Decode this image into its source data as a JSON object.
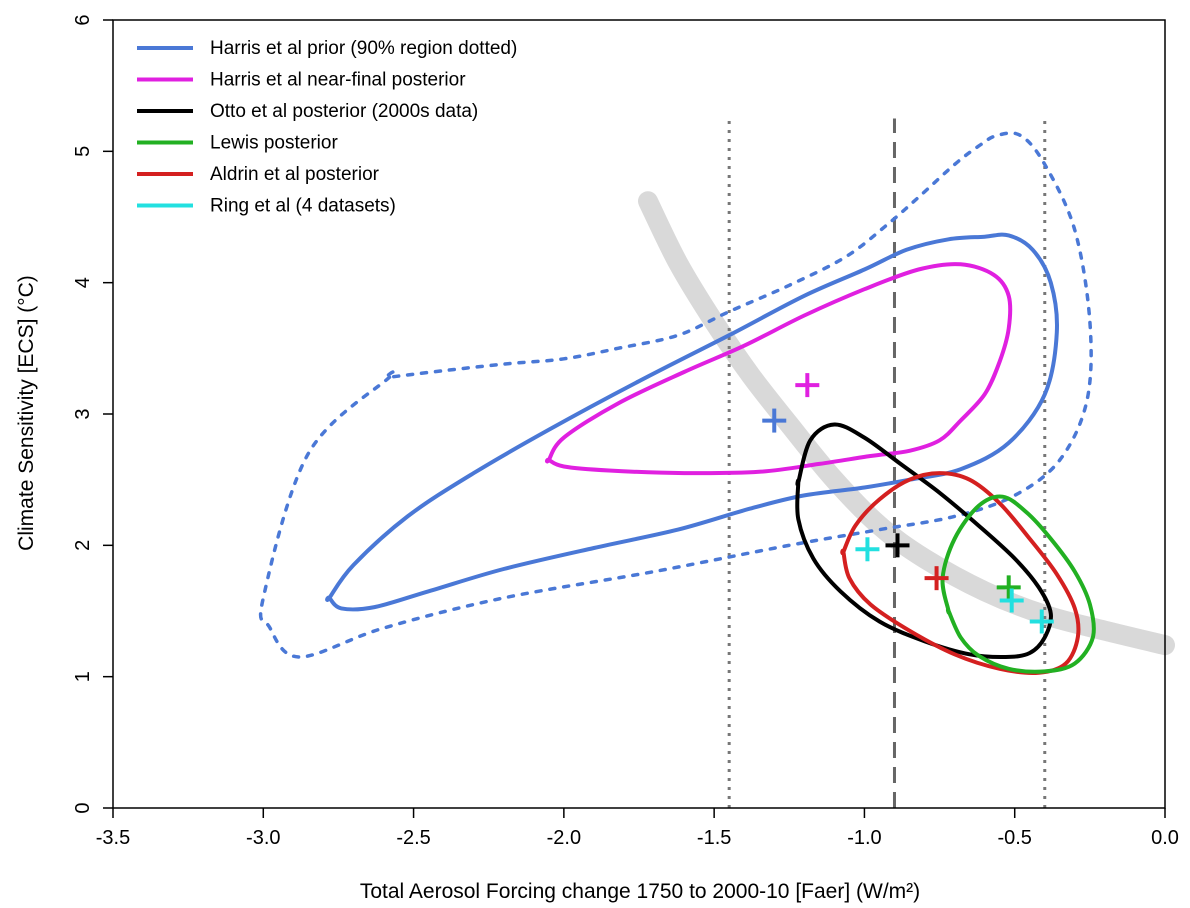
{
  "chart_data": {
    "type": "line",
    "title": "",
    "xlabel": "Total Aerosol Forcing change 1750 to 2000-10 [Faer] (W/m²)",
    "ylabel": "Climate Sensitivity [ECS] (°C)",
    "xlim": [
      -3.5,
      0.0
    ],
    "ylim": [
      0,
      6
    ],
    "x_ticks": [
      -3.5,
      -3.0,
      -2.5,
      -2.0,
      -1.5,
      -1.0,
      -0.5,
      0.0
    ],
    "x_tick_labels": [
      "-3.5",
      "-3.0",
      "-2.5",
      "-2.0",
      "-1.5",
      "-1.0",
      "-0.5",
      "0.0"
    ],
    "y_ticks": [
      0,
      1,
      2,
      3,
      4,
      5,
      6
    ],
    "y_tick_labels": [
      "0",
      "1",
      "2",
      "3",
      "4",
      "5",
      "6"
    ],
    "grid": false,
    "legend_position": "top-left",
    "legend": [
      {
        "label": "Harris et al prior (90% region dotted)",
        "color": "#4a78d6"
      },
      {
        "label": "Harris et al near-final posterior",
        "color": "#e020e0"
      },
      {
        "label": "Otto et al posterior (2000s data)",
        "color": "#000000"
      },
      {
        "label": "Lewis posterior",
        "color": "#22b022"
      },
      {
        "label": "Aldrin et al posterior",
        "color": "#d42020"
      },
      {
        "label": "Ring et al (4 datasets)",
        "color": "#22e0e0"
      }
    ],
    "vertical_lines": [
      {
        "x": -1.45,
        "style": "dotted",
        "color": "#777777"
      },
      {
        "x": -0.9,
        "style": "dashed",
        "color": "#666666"
      },
      {
        "x": -0.4,
        "style": "dotted",
        "color": "#777777"
      }
    ],
    "band": {
      "color": "#d9d9d9",
      "points": [
        [
          -1.72,
          4.62
        ],
        [
          -1.62,
          4.15
        ],
        [
          -1.5,
          3.7
        ],
        [
          -1.38,
          3.3
        ],
        [
          -1.25,
          2.92
        ],
        [
          -1.1,
          2.5
        ],
        [
          -0.95,
          2.15
        ],
        [
          -0.8,
          1.9
        ],
        [
          -0.6,
          1.65
        ],
        [
          -0.4,
          1.47
        ],
        [
          -0.2,
          1.35
        ],
        [
          0.0,
          1.24
        ]
      ]
    },
    "series": [
      {
        "name": "Harris et al prior (90% region dotted)",
        "color": "#4a78d6",
        "style": "dotted",
        "x": [
          -2.58,
          -2.85,
          -3.0,
          -2.98,
          -2.88,
          -2.6,
          -2.2,
          -1.7,
          -1.25,
          -0.95,
          -0.7,
          -0.5,
          -0.35,
          -0.26,
          -0.25,
          -0.3,
          -0.4,
          -0.48,
          -0.56,
          -0.62,
          -0.7,
          -0.82,
          -0.92,
          -1.06,
          -1.25,
          -1.45,
          -1.62,
          -1.82,
          -2.0,
          -2.2,
          -2.4,
          -2.58
        ],
        "y": [
          3.28,
          2.7,
          1.6,
          1.38,
          1.15,
          1.37,
          1.6,
          1.8,
          2.0,
          2.12,
          2.22,
          2.38,
          2.65,
          3.1,
          3.7,
          4.4,
          4.9,
          5.12,
          5.12,
          5.04,
          4.9,
          4.65,
          4.45,
          4.2,
          3.98,
          3.78,
          3.6,
          3.5,
          3.42,
          3.38,
          3.33,
          3.28
        ]
      },
      {
        "name": "Harris et al prior (90% region dotted)",
        "color": "#4a78d6",
        "style": "solid",
        "x": [
          -2.78,
          -2.74,
          -2.63,
          -2.45,
          -2.2,
          -1.9,
          -1.62,
          -1.38,
          -1.2,
          -1.0,
          -0.85,
          -0.68,
          -0.52,
          -0.4,
          -0.36,
          -0.38,
          -0.44,
          -0.52,
          -0.6,
          -0.72,
          -0.86,
          -1.0,
          -1.2,
          -1.45,
          -1.75,
          -2.05,
          -2.3,
          -2.52,
          -2.7,
          -2.78
        ],
        "y": [
          1.6,
          1.52,
          1.53,
          1.65,
          1.82,
          1.98,
          2.12,
          2.28,
          2.38,
          2.44,
          2.5,
          2.58,
          2.78,
          3.15,
          3.62,
          4.0,
          4.25,
          4.36,
          4.35,
          4.33,
          4.25,
          4.1,
          3.9,
          3.6,
          3.25,
          2.88,
          2.55,
          2.22,
          1.85,
          1.6
        ]
      },
      {
        "name": "Harris et al near-final posterior",
        "color": "#e020e0",
        "style": "solid",
        "x": [
          -2.05,
          -2.0,
          -1.85,
          -1.6,
          -1.35,
          -1.15,
          -0.98,
          -0.85,
          -0.75,
          -0.68,
          -0.6,
          -0.55,
          -0.52,
          -0.52,
          -0.57,
          -0.68,
          -0.82,
          -1.0,
          -1.2,
          -1.4,
          -1.6,
          -1.82,
          -2.0,
          -2.05
        ],
        "y": [
          2.65,
          2.6,
          2.57,
          2.55,
          2.56,
          2.62,
          2.68,
          2.72,
          2.8,
          2.95,
          3.15,
          3.4,
          3.65,
          3.9,
          4.06,
          4.14,
          4.1,
          3.95,
          3.75,
          3.52,
          3.32,
          3.08,
          2.82,
          2.65
        ]
      },
      {
        "name": "Otto et al posterior (2000s data)",
        "color": "#000000",
        "style": "solid",
        "x": [
          -1.22,
          -1.22,
          -1.17,
          -1.08,
          -0.95,
          -0.8,
          -0.65,
          -0.53,
          -0.45,
          -0.4,
          -0.38,
          -0.42,
          -0.5,
          -0.62,
          -0.75,
          -0.88,
          -1.0,
          -1.1,
          -1.18,
          -1.22
        ],
        "y": [
          2.48,
          2.2,
          1.9,
          1.65,
          1.42,
          1.27,
          1.17,
          1.15,
          1.18,
          1.3,
          1.48,
          1.68,
          1.9,
          2.15,
          2.4,
          2.62,
          2.82,
          2.92,
          2.8,
          2.48
        ]
      },
      {
        "name": "Aldrin et al posterior",
        "color": "#d42020",
        "style": "solid",
        "x": [
          -1.07,
          -1.05,
          -0.98,
          -0.85,
          -0.7,
          -0.55,
          -0.42,
          -0.33,
          -0.29,
          -0.3,
          -0.36,
          -0.45,
          -0.55,
          -0.65,
          -0.75,
          -0.85,
          -0.95,
          -1.03,
          -1.07
        ],
        "y": [
          1.95,
          1.75,
          1.55,
          1.35,
          1.17,
          1.06,
          1.03,
          1.1,
          1.3,
          1.52,
          1.78,
          2.05,
          2.32,
          2.5,
          2.55,
          2.5,
          2.35,
          2.15,
          1.95
        ]
      },
      {
        "name": "Lewis posterior",
        "color": "#22b022",
        "style": "solid",
        "x": [
          -0.72,
          -0.68,
          -0.62,
          -0.52,
          -0.4,
          -0.3,
          -0.24,
          -0.25,
          -0.3,
          -0.38,
          -0.46,
          -0.54,
          -0.62,
          -0.7,
          -0.74,
          -0.72
        ],
        "y": [
          1.5,
          1.3,
          1.16,
          1.06,
          1.04,
          1.1,
          1.3,
          1.55,
          1.8,
          2.05,
          2.25,
          2.37,
          2.3,
          2.05,
          1.75,
          1.5
        ]
      }
    ],
    "markers": [
      {
        "x": -1.3,
        "y": 2.95,
        "color": "#4a78d6",
        "label": "Harris et al prior"
      },
      {
        "x": -1.19,
        "y": 3.22,
        "color": "#e020e0",
        "label": "Harris et al near-final posterior"
      },
      {
        "x": -0.89,
        "y": 2.0,
        "color": "#000000",
        "label": "Otto et al posterior"
      },
      {
        "x": -0.76,
        "y": 1.75,
        "color": "#d42020",
        "label": "Aldrin et al posterior"
      },
      {
        "x": -0.52,
        "y": 1.68,
        "color": "#22b022",
        "label": "Lewis posterior"
      },
      {
        "x": -0.99,
        "y": 1.97,
        "color": "#22e0e0",
        "label": "Ring et al"
      },
      {
        "x": -0.51,
        "y": 1.58,
        "color": "#22e0e0",
        "label": "Ring et al"
      },
      {
        "x": -0.41,
        "y": 1.42,
        "color": "#22e0e0",
        "label": "Ring et al"
      }
    ]
  }
}
